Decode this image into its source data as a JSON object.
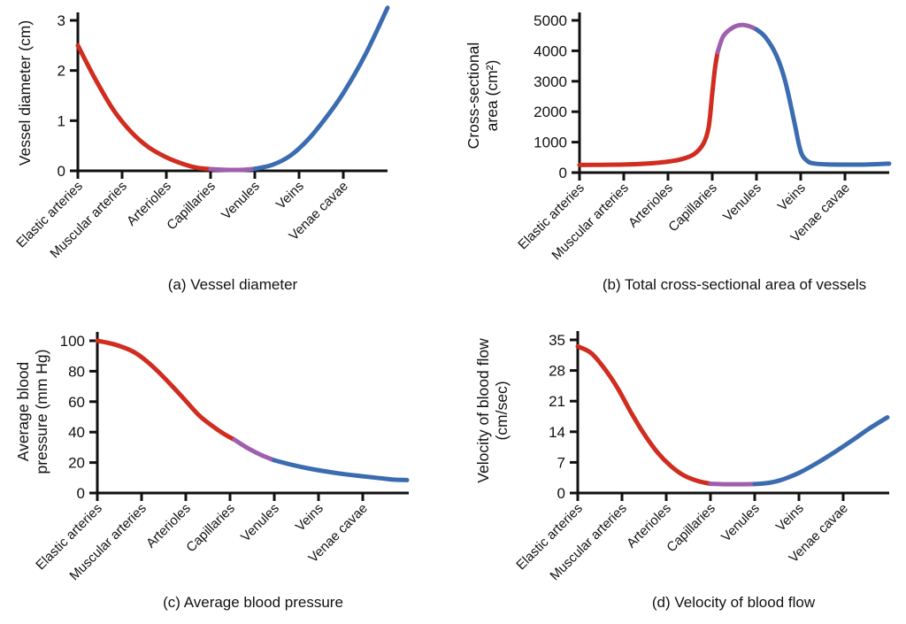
{
  "figure": {
    "background": "#ffffff"
  },
  "colors": {
    "arterial_red": "#d02c1f",
    "capillary_purple": "#a05fae",
    "venous_blue": "#3b6cb0",
    "axis_black": "#111111"
  },
  "chart_data": [
    {
      "type": "line",
      "panel": "a",
      "title": "(a) Vessel diameter",
      "ylabel": "Vessel diameter (cm)",
      "xlabel": "",
      "categories": [
        "Elastic arteries",
        "Muscular arteries",
        "Arterioles",
        "Capillaries",
        "Venules",
        "Veins",
        "Venae cavae"
      ],
      "ylim": [
        0,
        3
      ],
      "yticks": [
        0,
        1,
        2,
        3
      ],
      "grid": false,
      "x_note": "x in category-index units; 0 = Elastic arteries, 6 = Venae cavae, curve extends to 7 (axis end)",
      "series": [
        {
          "name": "arterial segment",
          "color": "arterial_red",
          "points": [
            [
              0,
              2.5
            ],
            [
              0.4,
              1.82
            ],
            [
              0.8,
              1.22
            ],
            [
              1.2,
              0.78
            ],
            [
              1.6,
              0.47
            ],
            [
              2.0,
              0.27
            ],
            [
              2.4,
              0.13
            ],
            [
              2.7,
              0.06
            ],
            [
              3.0,
              0.035
            ]
          ]
        },
        {
          "name": "capillary segment",
          "color": "capillary_purple",
          "points": [
            [
              3.0,
              0.035
            ],
            [
              3.35,
              0.02
            ],
            [
              3.7,
              0.02
            ],
            [
              4.0,
              0.04
            ]
          ]
        },
        {
          "name": "venous segment",
          "color": "venous_blue",
          "points": [
            [
              4.0,
              0.04
            ],
            [
              4.4,
              0.12
            ],
            [
              4.8,
              0.3
            ],
            [
              5.2,
              0.62
            ],
            [
              5.6,
              1.05
            ],
            [
              6.0,
              1.55
            ],
            [
              6.5,
              2.32
            ],
            [
              7.0,
              3.25
            ]
          ]
        }
      ]
    },
    {
      "type": "line",
      "panel": "b",
      "title": "(b) Total cross-sectional area of vessels",
      "ylabel": "Cross-sectional\narea (cm²)",
      "xlabel": "",
      "categories": [
        "Elastic arteries",
        "Muscular arteries",
        "Arterioles",
        "Capillaries",
        "Venules",
        "Veins",
        "Venae cavae"
      ],
      "ylim": [
        0,
        5000
      ],
      "yticks": [
        0,
        1000,
        2000,
        3000,
        4000,
        5000
      ],
      "grid": false,
      "x_note": "x in category-index units; 0 = Elastic arteries, 6 = Venae cavae, curve extends to 7 (axis end)",
      "series": [
        {
          "name": "arterial segment",
          "color": "arterial_red",
          "points": [
            [
              0,
              250
            ],
            [
              0.5,
              255
            ],
            [
              1.0,
              265
            ],
            [
              1.5,
              295
            ],
            [
              2.0,
              360
            ],
            [
              2.35,
              460
            ],
            [
              2.6,
              620
            ],
            [
              2.8,
              950
            ],
            [
              2.92,
              1500
            ],
            [
              3.0,
              2600
            ],
            [
              3.06,
              3400
            ],
            [
              3.12,
              3950
            ]
          ]
        },
        {
          "name": "capillary segment",
          "color": "capillary_purple",
          "points": [
            [
              3.12,
              3950
            ],
            [
              3.25,
              4480
            ],
            [
              3.45,
              4750
            ],
            [
              3.65,
              4850
            ],
            [
              3.85,
              4800
            ],
            [
              4.0,
              4700
            ]
          ]
        },
        {
          "name": "venous segment",
          "color": "venous_blue",
          "points": [
            [
              4.0,
              4700
            ],
            [
              4.2,
              4450
            ],
            [
              4.45,
              3850
            ],
            [
              4.65,
              3000
            ],
            [
              4.85,
              1700
            ],
            [
              5.0,
              700
            ],
            [
              5.15,
              380
            ],
            [
              5.3,
              300
            ],
            [
              5.6,
              268
            ],
            [
              6.0,
              262
            ],
            [
              6.5,
              265
            ],
            [
              7.0,
              295
            ]
          ]
        }
      ]
    },
    {
      "type": "line",
      "panel": "c",
      "title": "(c) Average blood pressure",
      "ylabel": "Average blood\npressure (mm Hg)",
      "xlabel": "",
      "categories": [
        "Elastic arteries",
        "Muscular arteries",
        "Arterioles",
        "Capillaries",
        "Venules",
        "Veins",
        "Venae cavae"
      ],
      "ylim": [
        0,
        100
      ],
      "yticks": [
        0,
        20,
        40,
        60,
        80,
        100
      ],
      "grid": false,
      "x_note": "x in category-index units; 0 = Elastic arteries, 6 = Venae cavae, curve extends to 7 (axis end)",
      "series": [
        {
          "name": "arterial segment",
          "color": "arterial_red",
          "points": [
            [
              0,
              100
            ],
            [
              0.4,
              97.5
            ],
            [
              0.8,
              93
            ],
            [
              1.1,
              87
            ],
            [
              1.4,
              79
            ],
            [
              1.7,
              70
            ],
            [
              2.0,
              60.5
            ],
            [
              2.3,
              51
            ],
            [
              2.6,
              44
            ],
            [
              2.85,
              39
            ],
            [
              3.1,
              35
            ]
          ]
        },
        {
          "name": "capillary segment",
          "color": "capillary_purple",
          "points": [
            [
              3.1,
              35
            ],
            [
              3.4,
              29.5
            ],
            [
              3.7,
              25
            ],
            [
              4.0,
              21.5
            ]
          ]
        },
        {
          "name": "venous segment",
          "color": "venous_blue",
          "points": [
            [
              4.0,
              21.5
            ],
            [
              4.4,
              18.5
            ],
            [
              4.8,
              16
            ],
            [
              5.2,
              14
            ],
            [
              5.6,
              12.3
            ],
            [
              6.0,
              11
            ],
            [
              6.4,
              9.7
            ],
            [
              6.7,
              8.8
            ],
            [
              7.0,
              8.5
            ]
          ]
        }
      ]
    },
    {
      "type": "line",
      "panel": "d",
      "title": "(d) Velocity of blood flow",
      "ylabel": "Velocity of blood flow\n(cm/sec)",
      "xlabel": "",
      "categories": [
        "Elastic arteries",
        "Muscular arteries",
        "Arterioles",
        "Capillaries",
        "Venules",
        "Veins",
        "Venae cavae"
      ],
      "ylim": [
        0,
        35
      ],
      "yticks": [
        0,
        7,
        14,
        21,
        28,
        35
      ],
      "grid": false,
      "x_note": "x in category-index units; 0 = Elastic arteries, 6 = Venae cavae, curve extends to 7 (axis end)",
      "series": [
        {
          "name": "arterial segment",
          "color": "arterial_red",
          "points": [
            [
              0,
              33.5
            ],
            [
              0.3,
              32
            ],
            [
              0.6,
              28.5
            ],
            [
              0.9,
              24
            ],
            [
              1.2,
              18.5
            ],
            [
              1.5,
              13.5
            ],
            [
              1.8,
              9.3
            ],
            [
              2.1,
              6.2
            ],
            [
              2.4,
              4.0
            ],
            [
              2.7,
              2.8
            ],
            [
              3.0,
              2.1
            ]
          ]
        },
        {
          "name": "capillary segment",
          "color": "capillary_purple",
          "points": [
            [
              3.0,
              2.1
            ],
            [
              3.3,
              2.0
            ],
            [
              3.7,
              2.0
            ],
            [
              4.0,
              2.05
            ]
          ]
        },
        {
          "name": "venous segment",
          "color": "venous_blue",
          "points": [
            [
              4.0,
              2.05
            ],
            [
              4.3,
              2.3
            ],
            [
              4.6,
              3.0
            ],
            [
              5.0,
              4.6
            ],
            [
              5.4,
              6.8
            ],
            [
              5.8,
              9.3
            ],
            [
              6.2,
              12.0
            ],
            [
              6.6,
              14.8
            ],
            [
              7.0,
              17.3
            ]
          ]
        }
      ]
    }
  ]
}
